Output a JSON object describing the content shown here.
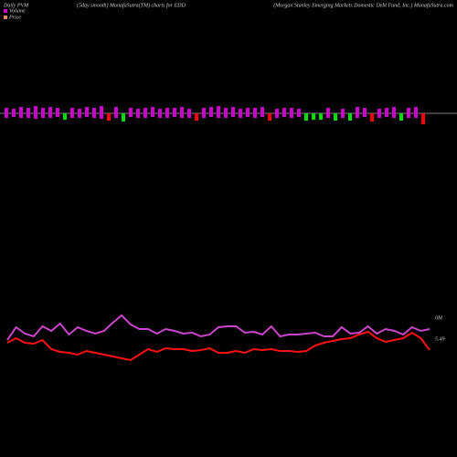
{
  "chart_data": {
    "type": "pvm",
    "header_left": "Daily PVM",
    "title": "(5day smooth) MunafaSutra(TM) charts for EDD",
    "header_right": "(Morgan Stanley Emerging Markets Domestic Debt Fund, Inc.) MunafaSutra.com",
    "bars": {
      "colors": [
        "#cc00cc",
        "#cc00cc",
        "#cc00cc",
        "#cc00cc",
        "#cc00cc",
        "#cc00cc",
        "#cc00cc",
        "#cc00cc",
        "#00dd00",
        "#cc00cc",
        "#cc00cc",
        "#cc00cc",
        "#cc00cc",
        "#cc00cc",
        "#ff0000",
        "#cc00cc",
        "#00dd00",
        "#cc00cc",
        "#cc00cc",
        "#cc00cc",
        "#cc00cc",
        "#cc00cc",
        "#cc00cc",
        "#cc00cc",
        "#cc00cc",
        "#cc00cc",
        "#ff0000",
        "#cc00cc",
        "#cc00cc",
        "#cc00cc",
        "#cc00cc",
        "#cc00cc",
        "#cc00cc",
        "#cc00cc",
        "#cc00cc",
        "#cc00cc",
        "#ff0000",
        "#cc00cc",
        "#cc00cc",
        "#cc00cc",
        "#cc00cc",
        "#00dd00",
        "#00dd00",
        "#00dd00",
        "#cc00cc",
        "#00dd00",
        "#cc00cc",
        "#00dd00",
        "#cc00cc",
        "#cc00cc",
        "#ff0000",
        "#cc00cc",
        "#cc00cc",
        "#cc00cc",
        "#00dd00",
        "#cc00cc",
        "#cc00cc",
        "#ff0000"
      ],
      "above": [
        6,
        5,
        7,
        6,
        8,
        6,
        7,
        6,
        0,
        6,
        5,
        7,
        6,
        8,
        0,
        7,
        0,
        6,
        5,
        6,
        7,
        5,
        6,
        6,
        7,
        5,
        0,
        6,
        7,
        8,
        6,
        7,
        5,
        6,
        6,
        7,
        0,
        5,
        6,
        6,
        5,
        0,
        0,
        0,
        6,
        0,
        5,
        0,
        7,
        6,
        0,
        5,
        6,
        7,
        0,
        6,
        7,
        0
      ],
      "below": [
        5,
        4,
        5,
        5,
        6,
        5,
        5,
        4,
        7,
        5,
        5,
        4,
        5,
        6,
        8,
        5,
        9,
        4,
        5,
        5,
        4,
        5,
        5,
        4,
        5,
        5,
        8,
        5,
        4,
        5,
        5,
        4,
        5,
        4,
        5,
        4,
        8,
        5,
        4,
        5,
        4,
        8,
        7,
        7,
        5,
        8,
        5,
        8,
        5,
        4,
        9,
        5,
        4,
        5,
        8,
        5,
        5,
        12
      ]
    },
    "series": [
      {
        "name": "Volume",
        "color": "#cc44cc",
        "legend_color": "#cc00cc",
        "end_label": "0M",
        "ylim": [
          0,
          2
        ],
        "values": [
          0.14,
          0.21,
          0.175,
          0.16,
          0.215,
          0.19,
          0.23,
          0.17,
          0.21,
          0.19,
          0.175,
          0.19,
          0.235,
          0.275,
          0.225,
          0.2,
          0.2,
          0.175,
          0.2,
          0.19,
          0.175,
          0.18,
          0.16,
          0.17,
          0.21,
          0.215,
          0.215,
          0.18,
          0.185,
          0.17,
          0.215,
          0.16,
          0.17,
          0.17,
          0.175,
          0.18,
          0.16,
          0.16,
          0.21,
          0.175,
          0.18,
          0.215,
          0.175,
          0.2,
          0.19,
          0.17,
          0.21,
          0.19,
          0.2
        ]
      },
      {
        "name": "Price",
        "color": "#ff1111",
        "legend_color": "#dd8866",
        "end_label": "5.49",
        "ylim": [
          4.32,
          8.32
        ],
        "values": [
          5.57,
          5.62,
          5.57,
          5.56,
          5.6,
          5.5,
          5.47,
          5.46,
          5.44,
          5.48,
          5.46,
          5.44,
          5.42,
          5.4,
          5.38,
          5.44,
          5.5,
          5.47,
          5.51,
          5.5,
          5.5,
          5.48,
          5.49,
          5.51,
          5.46,
          5.46,
          5.48,
          5.46,
          5.5,
          5.49,
          5.5,
          5.48,
          5.48,
          5.47,
          5.48,
          5.54,
          5.57,
          5.59,
          5.61,
          5.62,
          5.66,
          5.69,
          5.62,
          5.58,
          5.6,
          5.62,
          5.68,
          5.62,
          5.49
        ]
      }
    ]
  }
}
